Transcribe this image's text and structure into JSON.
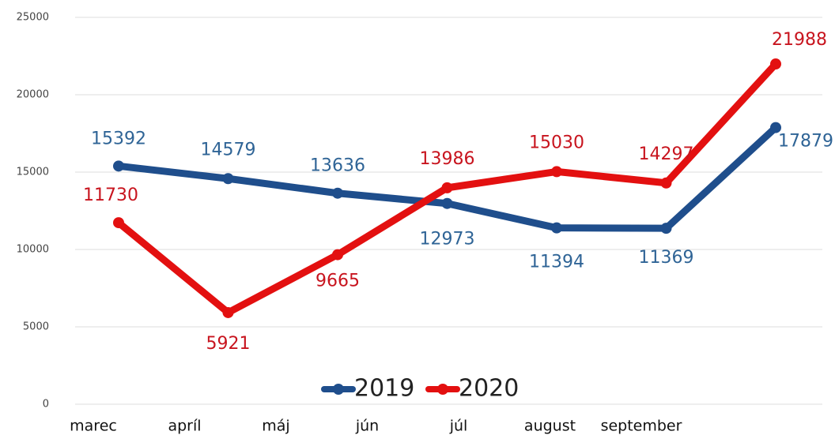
{
  "chart_data": {
    "type": "line",
    "categories": [
      "marec",
      "apríl",
      "máj",
      "jún",
      "júl",
      "august",
      "september"
    ],
    "series": [
      {
        "name": "2019",
        "color": "#1f4e8c",
        "label_color": "#2f6496",
        "values": [
          15392,
          14579,
          13636,
          12973,
          11394,
          11369,
          17879
        ]
      },
      {
        "name": "2020",
        "color": "#e31010",
        "label_color": "#c8141e",
        "values": [
          11730,
          5921,
          9665,
          13986,
          15030,
          14297,
          21988
        ]
      }
    ],
    "ylim": [
      0,
      25000
    ],
    "yticks": [
      0,
      5000,
      10000,
      15000,
      20000,
      25000
    ],
    "grid": true,
    "legend": "bottom"
  }
}
